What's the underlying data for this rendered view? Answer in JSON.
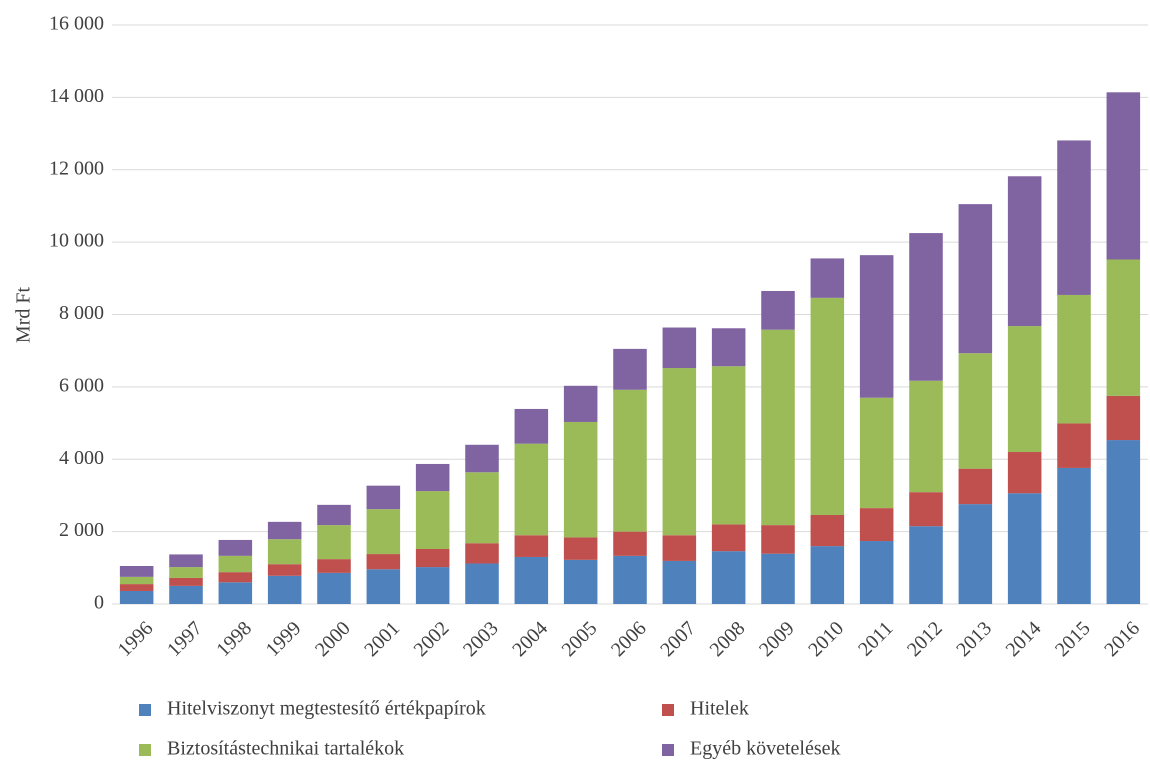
{
  "chart_data": {
    "type": "stacked_bar",
    "y_label": "Mrd Ft",
    "categories": [
      "1996",
      "1997",
      "1998",
      "1999",
      "2000",
      "2001",
      "2002",
      "2003",
      "2004",
      "2005",
      "2006",
      "2007",
      "2008",
      "2009",
      "2010",
      "2011",
      "2012",
      "2013",
      "2014",
      "2015",
      "2016"
    ],
    "series": [
      {
        "name": "Hitelviszonyt megtestesítő értékpapírok",
        "color": "#4f81bd",
        "values": [
          360,
          500,
          600,
          780,
          860,
          960,
          1020,
          1120,
          1300,
          1220,
          1330,
          1190,
          1460,
          1390,
          1600,
          1740,
          2150,
          2760,
          3060,
          3760,
          4530
        ]
      },
      {
        "name": "Hitelek",
        "color": "#c0504d",
        "values": [
          190,
          220,
          280,
          320,
          380,
          420,
          500,
          560,
          600,
          620,
          670,
          710,
          740,
          790,
          860,
          910,
          940,
          980,
          1140,
          1230,
          1220
        ]
      },
      {
        "name": "Biztosítástechnikai tartalékok",
        "color": "#9bbb59",
        "values": [
          200,
          300,
          450,
          690,
          940,
          1240,
          1600,
          1960,
          2530,
          3190,
          3920,
          4620,
          4370,
          5400,
          6000,
          3050,
          3080,
          3190,
          3480,
          3550,
          3770
        ]
      },
      {
        "name": "Egyéb követelések",
        "color": "#8064a2",
        "values": [
          300,
          350,
          440,
          480,
          560,
          650,
          750,
          760,
          960,
          1000,
          1130,
          1120,
          1050,
          1070,
          1090,
          3940,
          4080,
          4120,
          4140,
          4270,
          4620
        ]
      }
    ],
    "ylim": [
      0,
      16000
    ],
    "yticks": [
      0,
      {
        "value": 2000,
        "label": "2 000"
      },
      {
        "value": 4000,
        "label": "4 000"
      },
      {
        "value": 6000,
        "label": "6 000"
      },
      {
        "value": 8000,
        "label": "8 000"
      },
      {
        "value": 10000,
        "label": "10 000"
      },
      {
        "value": 12000,
        "label": "12 000"
      },
      {
        "value": 14000,
        "label": "14 000"
      },
      {
        "value": 16000,
        "label": "16 000"
      }
    ],
    "grid": true
  }
}
